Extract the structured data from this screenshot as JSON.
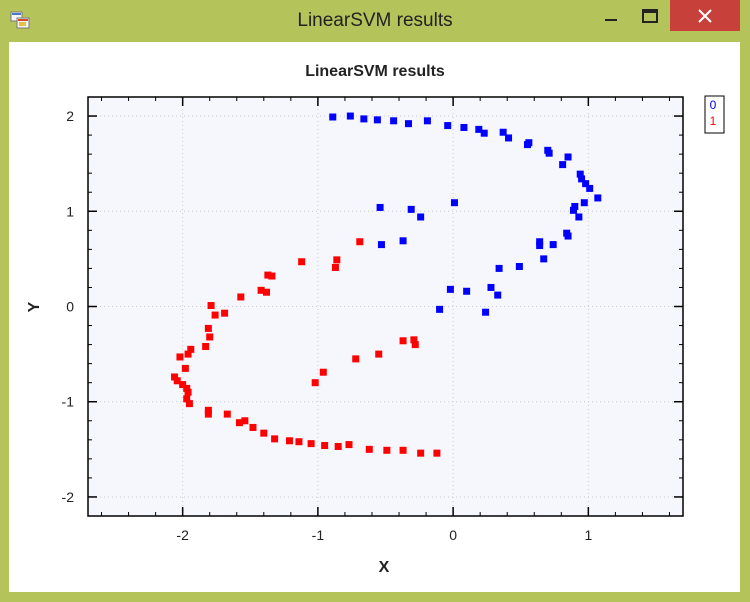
{
  "window": {
    "title": "LinearSVM results",
    "controls": {
      "minimize": "minimize",
      "maximize": "maximize",
      "close": "close"
    }
  },
  "colors": {
    "class0": "#0000ff",
    "class1": "#ff0000",
    "plot_bg": "#f6f7fd"
  },
  "chart_data": {
    "type": "scatter",
    "title": "LinearSVM results",
    "xlabel": "X",
    "ylabel": "Y",
    "xlim": [
      -2.7,
      1.7
    ],
    "ylim": [
      -2.2,
      2.2
    ],
    "xticks": [
      -2,
      -1,
      0,
      1
    ],
    "yticks": [
      -2,
      -1,
      0,
      1,
      2
    ],
    "grid": true,
    "legend": "top-right",
    "series": [
      {
        "name": "0",
        "color": "#0000ff",
        "points": [
          [
            -0.89,
            1.99
          ],
          [
            -0.76,
            2.0
          ],
          [
            -0.66,
            1.97
          ],
          [
            -0.56,
            1.96
          ],
          [
            -0.44,
            1.95
          ],
          [
            -0.33,
            1.92
          ],
          [
            -0.19,
            1.95
          ],
          [
            -0.04,
            1.9
          ],
          [
            0.08,
            1.88
          ],
          [
            0.19,
            1.86
          ],
          [
            0.23,
            1.82
          ],
          [
            0.37,
            1.83
          ],
          [
            0.41,
            1.77
          ],
          [
            0.55,
            1.7
          ],
          [
            0.56,
            1.72
          ],
          [
            0.7,
            1.64
          ],
          [
            0.71,
            1.61
          ],
          [
            0.81,
            1.49
          ],
          [
            0.85,
            1.57
          ],
          [
            0.94,
            1.39
          ],
          [
            0.95,
            1.34
          ],
          [
            0.98,
            1.29
          ],
          [
            1.01,
            1.24
          ],
          [
            1.07,
            1.14
          ],
          [
            0.97,
            1.09
          ],
          [
            0.9,
            1.05
          ],
          [
            0.89,
            1.01
          ],
          [
            0.93,
            0.94
          ],
          [
            0.84,
            0.77
          ],
          [
            0.85,
            0.74
          ],
          [
            0.74,
            0.65
          ],
          [
            0.64,
            0.68
          ],
          [
            0.64,
            0.64
          ],
          [
            0.67,
            0.5
          ],
          [
            0.49,
            0.42
          ],
          [
            0.34,
            0.4
          ],
          [
            0.28,
            0.2
          ],
          [
            0.33,
            0.12
          ],
          [
            0.24,
            -0.06
          ],
          [
            0.1,
            0.16
          ],
          [
            -0.02,
            0.18
          ],
          [
            -0.1,
            -0.03
          ],
          [
            0.01,
            1.09
          ],
          [
            -0.31,
            1.02
          ],
          [
            -0.24,
            0.94
          ],
          [
            -0.54,
            1.04
          ],
          [
            -0.37,
            0.69
          ],
          [
            -0.53,
            0.65
          ]
        ]
      },
      {
        "name": "1",
        "color": "#ff0000",
        "points": [
          [
            -0.12,
            -1.54
          ],
          [
            -0.24,
            -1.54
          ],
          [
            -0.37,
            -1.51
          ],
          [
            -0.49,
            -1.51
          ],
          [
            -0.62,
            -1.5
          ],
          [
            -0.77,
            -1.45
          ],
          [
            -0.85,
            -1.47
          ],
          [
            -0.95,
            -1.46
          ],
          [
            -1.05,
            -1.44
          ],
          [
            -1.14,
            -1.42
          ],
          [
            -1.21,
            -1.41
          ],
          [
            -1.32,
            -1.39
          ],
          [
            -1.4,
            -1.33
          ],
          [
            -1.48,
            -1.27
          ],
          [
            -1.54,
            -1.2
          ],
          [
            -1.58,
            -1.22
          ],
          [
            -1.67,
            -1.13
          ],
          [
            -1.81,
            -1.09
          ],
          [
            -1.81,
            -1.13
          ],
          [
            -1.95,
            -1.02
          ],
          [
            -1.97,
            -0.97
          ],
          [
            -1.96,
            -0.9
          ],
          [
            -1.97,
            -0.86
          ],
          [
            -2.0,
            -0.82
          ],
          [
            -2.04,
            -0.78
          ],
          [
            -2.06,
            -0.74
          ],
          [
            -1.98,
            -0.65
          ],
          [
            -2.02,
            -0.53
          ],
          [
            -1.96,
            -0.5
          ],
          [
            -1.94,
            -0.45
          ],
          [
            -1.83,
            -0.42
          ],
          [
            -1.8,
            -0.32
          ],
          [
            -1.81,
            -0.23
          ],
          [
            -1.76,
            -0.09
          ],
          [
            -1.69,
            -0.07
          ],
          [
            -1.79,
            0.01
          ],
          [
            -1.57,
            0.1
          ],
          [
            -1.42,
            0.17
          ],
          [
            -1.38,
            0.15
          ],
          [
            -1.37,
            0.33
          ],
          [
            -1.34,
            0.32
          ],
          [
            -1.12,
            0.47
          ],
          [
            -0.87,
            0.41
          ],
          [
            -0.86,
            0.49
          ],
          [
            -0.69,
            0.68
          ],
          [
            -1.02,
            -0.8
          ],
          [
            -0.96,
            -0.69
          ],
          [
            -0.72,
            -0.55
          ],
          [
            -0.55,
            -0.5
          ],
          [
            -0.37,
            -0.36
          ],
          [
            -0.29,
            -0.35
          ],
          [
            -0.28,
            -0.4
          ]
        ]
      }
    ]
  }
}
